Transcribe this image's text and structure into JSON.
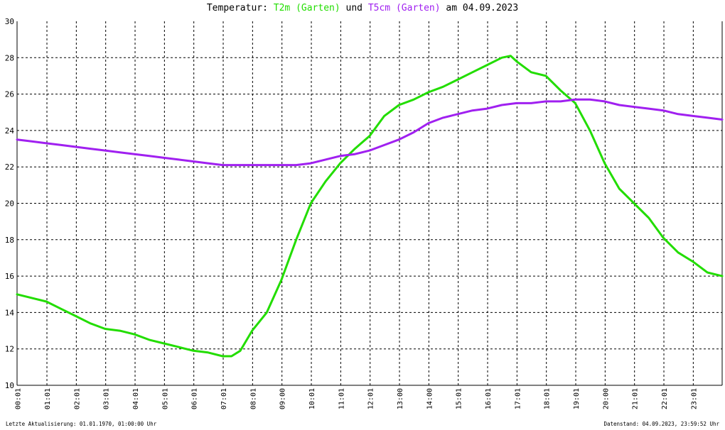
{
  "chart_data": {
    "type": "line",
    "title": {
      "prefix": "Temperatur: ",
      "series1_label": "T2m (Garten)",
      "connector": " und ",
      "series2_label": "T5cm (Garten)",
      "suffix": " am 04.09.2023"
    },
    "xlabel": "",
    "ylabel": "",
    "x_unit": "hours",
    "xlim": [
      0,
      24
    ],
    "ylim": [
      10,
      30
    ],
    "y_ticks": [
      10,
      12,
      14,
      16,
      18,
      20,
      22,
      24,
      26,
      28,
      30
    ],
    "x_tick_labels": [
      "00:01",
      "01:01",
      "02:01",
      "03:01",
      "04:01",
      "05:01",
      "06:01",
      "07:01",
      "08:01",
      "09:00",
      "10:01",
      "11:01",
      "12:01",
      "13:00",
      "14:00",
      "15:01",
      "16:01",
      "17:01",
      "18:01",
      "19:01",
      "20:00",
      "21:01",
      "22:01",
      "23:01"
    ],
    "grid": true,
    "series": [
      {
        "name": "T2m (Garten)",
        "color": "#22dd00",
        "x": [
          0,
          0.5,
          1,
          1.5,
          2,
          2.5,
          3,
          3.5,
          4,
          4.5,
          5,
          5.5,
          6,
          6.5,
          7,
          7.3,
          7.6,
          8,
          8.5,
          9,
          9.5,
          10,
          10.5,
          11,
          11.5,
          12,
          12.5,
          13,
          13.5,
          14,
          14.5,
          15,
          15.5,
          16,
          16.5,
          16.8,
          17,
          17.5,
          18,
          18.5,
          19,
          19.5,
          20,
          20.5,
          21,
          21.5,
          22,
          22.5,
          23,
          23.5,
          24
        ],
        "values": [
          15.0,
          14.8,
          14.6,
          14.2,
          13.8,
          13.4,
          13.1,
          13.0,
          12.8,
          12.5,
          12.3,
          12.1,
          11.9,
          11.8,
          11.6,
          11.6,
          11.9,
          13.0,
          14.0,
          15.8,
          18.0,
          20.0,
          21.2,
          22.2,
          23.0,
          23.7,
          24.8,
          25.4,
          25.7,
          26.1,
          26.4,
          26.8,
          27.2,
          27.6,
          28.0,
          28.1,
          27.8,
          27.2,
          27.0,
          26.2,
          25.5,
          24.0,
          22.2,
          20.8,
          20.0,
          19.2,
          18.1,
          17.3,
          16.8,
          16.2,
          16.0
        ]
      },
      {
        "name": "T5cm (Garten)",
        "color": "#a020f0",
        "x": [
          0,
          0.5,
          1,
          1.5,
          2,
          2.5,
          3,
          3.5,
          4,
          4.5,
          5,
          5.5,
          6,
          6.5,
          7,
          7.5,
          8,
          8.5,
          9,
          9.5,
          10,
          10.5,
          11,
          11.5,
          12,
          12.5,
          13,
          13.5,
          14,
          14.5,
          15,
          15.5,
          16,
          16.5,
          17,
          17.5,
          18,
          18.5,
          19,
          19.5,
          20,
          20.5,
          21,
          21.5,
          22,
          22.5,
          23,
          23.5,
          24
        ],
        "values": [
          23.5,
          23.4,
          23.3,
          23.2,
          23.1,
          23.0,
          22.9,
          22.8,
          22.7,
          22.6,
          22.5,
          22.4,
          22.3,
          22.2,
          22.1,
          22.1,
          22.1,
          22.1,
          22.1,
          22.1,
          22.2,
          22.4,
          22.6,
          22.7,
          22.9,
          23.2,
          23.5,
          23.9,
          24.4,
          24.7,
          24.9,
          25.1,
          25.2,
          25.4,
          25.5,
          25.5,
          25.6,
          25.6,
          25.7,
          25.7,
          25.6,
          25.4,
          25.3,
          25.2,
          25.1,
          24.9,
          24.8,
          24.7,
          24.6
        ]
      }
    ]
  },
  "footer": {
    "left": "Letzte Aktualisierung: 01.01.1970, 01:00:00 Uhr",
    "right": "Datenstand: 04.09.2023, 23:59:52 Uhr"
  }
}
